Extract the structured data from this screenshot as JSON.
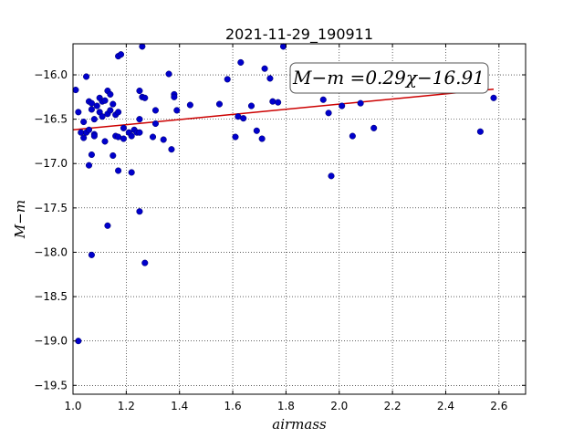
{
  "chart_data": {
    "type": "scatter",
    "title": "2021-11-29_190911",
    "xlabel": "airmass",
    "ylabel": "M−m",
    "xlim": [
      1.0,
      2.7
    ],
    "ylim": [
      -19.6,
      -15.65
    ],
    "x_ticks": [
      "1.0",
      "1.2",
      "1.4",
      "1.6",
      "1.8",
      "2.0",
      "2.2",
      "2.4",
      "2.6"
    ],
    "y_ticks": [
      "−16.0",
      "−16.5",
      "−17.0",
      "−17.5",
      "−18.0",
      "−18.5",
      "−19.0",
      "−19.5"
    ],
    "grid": true,
    "marker_color": "#0000cc",
    "fit_color": "#cc0000",
    "fit_label": "M−m =0.29χ−16.91",
    "fit": {
      "slope": 0.29,
      "intercept": -16.91,
      "x_range": [
        1.0,
        2.58
      ]
    },
    "points": [
      [
        1.01,
        -16.17
      ],
      [
        1.02,
        -16.42
      ],
      [
        1.03,
        -16.65
      ],
      [
        1.04,
        -16.71
      ],
      [
        1.04,
        -16.53
      ],
      [
        1.05,
        -16.02
      ],
      [
        1.05,
        -16.65
      ],
      [
        1.06,
        -16.3
      ],
      [
        1.06,
        -16.62
      ],
      [
        1.06,
        -17.02
      ],
      [
        1.07,
        -16.39
      ],
      [
        1.07,
        -16.9
      ],
      [
        1.07,
        -16.32
      ],
      [
        1.08,
        -16.67
      ],
      [
        1.08,
        -16.5
      ],
      [
        1.08,
        -16.69
      ],
      [
        1.09,
        -16.35
      ],
      [
        1.1,
        -16.26
      ],
      [
        1.1,
        -16.42
      ],
      [
        1.11,
        -16.3
      ],
      [
        1.11,
        -16.47
      ],
      [
        1.12,
        -16.75
      ],
      [
        1.12,
        -16.29
      ],
      [
        1.13,
        -16.18
      ],
      [
        1.13,
        -16.44
      ],
      [
        1.14,
        -16.4
      ],
      [
        1.14,
        -16.22
      ],
      [
        1.15,
        -16.91
      ],
      [
        1.15,
        -16.33
      ],
      [
        1.16,
        -16.45
      ],
      [
        1.16,
        -16.69
      ],
      [
        1.17,
        -16.42
      ],
      [
        1.17,
        -16.7
      ],
      [
        1.17,
        -15.79
      ],
      [
        1.17,
        -17.08
      ],
      [
        1.18,
        -15.77
      ],
      [
        1.19,
        -16.6
      ],
      [
        1.19,
        -16.72
      ],
      [
        1.21,
        -16.65
      ],
      [
        1.22,
        -16.69
      ],
      [
        1.23,
        -16.62
      ],
      [
        1.24,
        -16.65
      ],
      [
        1.25,
        -16.65
      ],
      [
        1.25,
        -16.18
      ],
      [
        1.25,
        -16.5
      ],
      [
        1.26,
        -15.68
      ],
      [
        1.26,
        -16.25
      ],
      [
        1.27,
        -16.26
      ],
      [
        1.3,
        -16.7
      ],
      [
        1.31,
        -16.4
      ],
      [
        1.31,
        -16.55
      ],
      [
        1.34,
        -16.73
      ],
      [
        1.36,
        -15.99
      ],
      [
        1.37,
        -16.84
      ],
      [
        1.38,
        -16.22
      ],
      [
        1.38,
        -16.25
      ],
      [
        1.39,
        -16.4
      ],
      [
        1.44,
        -16.34
      ],
      [
        1.55,
        -16.33
      ],
      [
        1.58,
        -16.05
      ],
      [
        1.61,
        -16.7
      ],
      [
        1.62,
        -16.47
      ],
      [
        1.63,
        -15.86
      ],
      [
        1.64,
        -16.49
      ],
      [
        1.67,
        -16.35
      ],
      [
        1.69,
        -16.63
      ],
      [
        1.71,
        -16.72
      ],
      [
        1.72,
        -15.93
      ],
      [
        1.74,
        -16.04
      ],
      [
        1.75,
        -16.3
      ],
      [
        1.77,
        -16.31
      ],
      [
        1.79,
        -15.68
      ],
      [
        1.94,
        -16.28
      ],
      [
        1.96,
        -16.43
      ],
      [
        1.97,
        -17.14
      ],
      [
        2.01,
        -16.35
      ],
      [
        2.05,
        -16.69
      ],
      [
        2.08,
        -16.32
      ],
      [
        2.13,
        -16.6
      ],
      [
        2.53,
        -16.64
      ],
      [
        2.58,
        -16.26
      ],
      [
        1.02,
        -19.0
      ],
      [
        1.07,
        -18.03
      ],
      [
        1.13,
        -17.7
      ],
      [
        1.22,
        -17.1
      ],
      [
        1.25,
        -17.54
      ],
      [
        1.27,
        -18.12
      ]
    ]
  }
}
